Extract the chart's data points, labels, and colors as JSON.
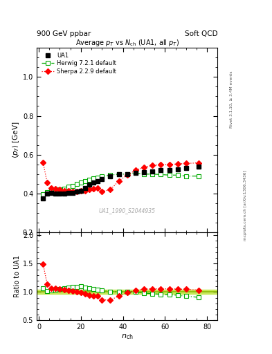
{
  "title_top_left": "900 GeV ppbar",
  "title_top_right": "Soft QCD",
  "main_title": "Average p_T vs N_ch (UA1, all p_T)",
  "right_label_top": "Rivet 3.1.10, ≥ 3.4M events",
  "right_label_bottom": "mcplots.cern.ch [arXiv:1306.3436]",
  "watermark": "UA1_1990_S2044935",
  "ylabel_main": "<p_T> [GeV]",
  "ylabel_ratio": "Ratio to UA1",
  "xlabel": "n_ch",
  "ylim_main": [
    0.2,
    1.15
  ],
  "ylim_ratio": [
    0.5,
    2.05
  ],
  "yticks_main": [
    0.2,
    0.4,
    0.6,
    0.8,
    1.0
  ],
  "yticks_ratio": [
    0.5,
    1.0,
    1.5,
    2.0
  ],
  "xlim": [
    -1,
    85
  ],
  "xticks": [
    0,
    20,
    40,
    60,
    80
  ],
  "ua1_x": [
    2,
    4,
    6,
    8,
    10,
    12,
    14,
    16,
    18,
    20,
    22,
    24,
    26,
    28,
    30,
    34,
    38,
    42,
    46,
    50,
    54,
    58,
    62,
    66,
    70,
    76
  ],
  "ua1_y": [
    0.375,
    0.4,
    0.405,
    0.4,
    0.4,
    0.4,
    0.405,
    0.405,
    0.41,
    0.415,
    0.43,
    0.445,
    0.455,
    0.465,
    0.475,
    0.49,
    0.5,
    0.5,
    0.505,
    0.51,
    0.515,
    0.52,
    0.52,
    0.525,
    0.53,
    0.54
  ],
  "herwig_x": [
    2,
    4,
    6,
    8,
    10,
    12,
    14,
    16,
    18,
    20,
    22,
    24,
    26,
    28,
    30,
    34,
    38,
    42,
    46,
    50,
    54,
    58,
    62,
    66,
    70,
    76
  ],
  "herwig_y": [
    0.398,
    0.407,
    0.415,
    0.415,
    0.42,
    0.425,
    0.435,
    0.44,
    0.448,
    0.458,
    0.465,
    0.472,
    0.478,
    0.482,
    0.488,
    0.495,
    0.5,
    0.5,
    0.505,
    0.5,
    0.5,
    0.498,
    0.495,
    0.495,
    0.49,
    0.49
  ],
  "sherpa_x": [
    2,
    4,
    6,
    8,
    10,
    12,
    14,
    16,
    18,
    20,
    22,
    24,
    26,
    28,
    30,
    34,
    38,
    42,
    46,
    50,
    54,
    58,
    62,
    66,
    70,
    76
  ],
  "sherpa_y": [
    0.56,
    0.455,
    0.43,
    0.425,
    0.42,
    0.415,
    0.415,
    0.41,
    0.412,
    0.413,
    0.415,
    0.42,
    0.425,
    0.43,
    0.41,
    0.42,
    0.465,
    0.495,
    0.52,
    0.535,
    0.545,
    0.548,
    0.55,
    0.552,
    0.555,
    0.558
  ],
  "herwig_ratio_y": [
    1.062,
    1.018,
    1.025,
    1.038,
    1.05,
    1.062,
    1.074,
    1.086,
    1.093,
    1.103,
    1.081,
    1.062,
    1.051,
    1.037,
    1.027,
    1.01,
    1.0,
    1.0,
    1.0,
    0.98,
    0.971,
    0.958,
    0.952,
    0.943,
    0.925,
    0.907
  ],
  "sherpa_ratio_y": [
    1.493,
    1.138,
    1.062,
    1.062,
    1.05,
    1.038,
    1.025,
    1.012,
    1.005,
    0.995,
    0.965,
    0.944,
    0.934,
    0.925,
    0.863,
    0.857,
    0.93,
    0.99,
    1.03,
    1.049,
    1.058,
    1.054,
    1.058,
    1.051,
    1.047,
    1.033
  ],
  "ua1_color": "#000000",
  "herwig_color": "#00aa00",
  "sherpa_color": "#ff0000",
  "ref_band_color": "#aadd00",
  "ref_band_alpha": 0.6,
  "ref_line_color": "#88bb00"
}
